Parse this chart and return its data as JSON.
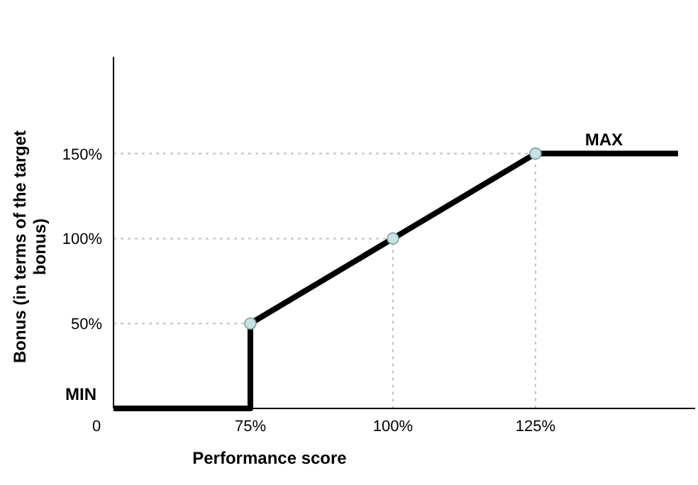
{
  "chart_data": {
    "type": "line",
    "xlabel": "Performance score",
    "ylabel": "Bonus (in terms of the target bonus)",
    "xlim": [
      51,
      153
    ],
    "ylim": [
      0,
      207
    ],
    "xticks": [
      {
        "value": 75,
        "label": "75%"
      },
      {
        "value": 100,
        "label": "100%"
      },
      {
        "value": 125,
        "label": "125%"
      }
    ],
    "yticks": [
      {
        "value": 50,
        "label": "50%"
      },
      {
        "value": 100,
        "label": "100%"
      },
      {
        "value": 150,
        "label": "150%"
      }
    ],
    "grid": false,
    "series": [
      {
        "type": "line",
        "color": "#bfbfbf",
        "line_style": "dotted",
        "marker": "none",
        "x": [
          51,
          75,
          75
        ],
        "values": [
          50,
          50,
          0
        ]
      },
      {
        "type": "line",
        "color": "#bfbfbf",
        "line_style": "dotted",
        "marker": "none",
        "x": [
          51,
          100,
          100
        ],
        "values": [
          100,
          100,
          0
        ]
      },
      {
        "type": "line",
        "color": "#bfbfbf",
        "line_style": "dotted",
        "marker": "none",
        "x": [
          51,
          125,
          125
        ],
        "values": [
          150,
          150,
          0
        ]
      },
      {
        "color": "#000000",
        "line_style": "solid",
        "marker": "none",
        "x": [
          51,
          75,
          75,
          100,
          125,
          150
        ],
        "values": [
          0,
          0,
          50,
          100,
          150,
          150
        ]
      },
      {
        "type": "scatter",
        "color": "#c6e2e2",
        "marker": "circle",
        "x": [
          75,
          100,
          125
        ],
        "values": [
          50,
          100,
          150
        ]
      }
    ],
    "annotations": [
      "0",
      {
        "text": "MIN",
        "x": 51,
        "y": 0
      },
      {
        "text": "MAX",
        "x": 137,
        "y": 150
      }
    ]
  }
}
